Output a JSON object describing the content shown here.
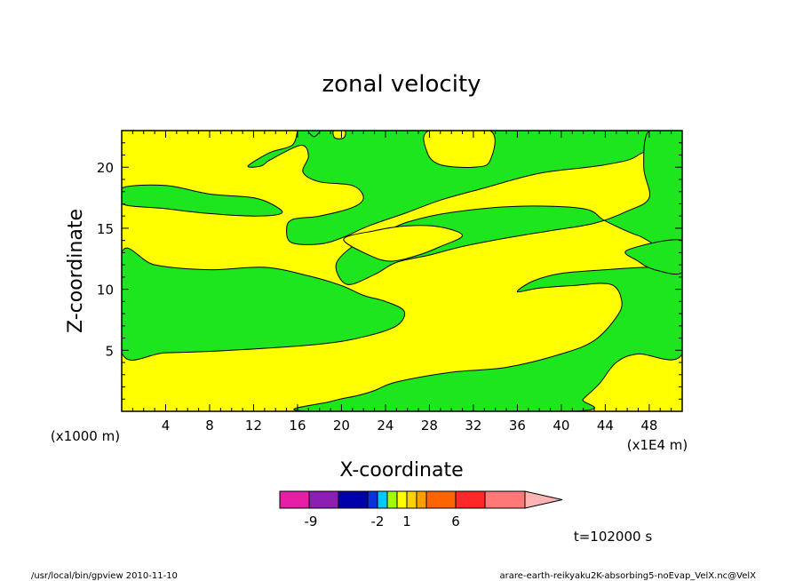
{
  "chart_data": {
    "type": "contour",
    "title": "zonal velocity",
    "xlabel": "X-coordinate",
    "ylabel": "Z-coordinate",
    "x_unit_left": "(x1000 m)",
    "x_unit_right": "(x1E4 m)",
    "xlim": [
      0,
      51
    ],
    "ylim": [
      0,
      23
    ],
    "x_ticks": [
      4,
      8,
      12,
      16,
      20,
      24,
      28,
      32,
      36,
      40,
      44,
      48
    ],
    "y_ticks": [
      5,
      10,
      15,
      20
    ],
    "time_label": "t=102000 s",
    "fill_colors": {
      "green": "#1ee61e",
      "yellow": "#ffff00"
    },
    "colorbar": {
      "colors": [
        "#e61ea5",
        "#8c1eb4",
        "#0000aa",
        "#0a32dc",
        "#00c8ff",
        "#a0ff00",
        "#ffff00",
        "#ffd200",
        "#ffa000",
        "#ff6400",
        "#ff2828",
        "#ff7878",
        "#ffb4b4"
      ],
      "tick_labels": [
        "-9",
        "-2",
        "1",
        "6"
      ]
    },
    "regions_green": [
      {
        "name": "lower-green-band",
        "points": [
          [
            0,
            13
          ],
          [
            3,
            12
          ],
          [
            8,
            11.6
          ],
          [
            13,
            11.8
          ],
          [
            17,
            11.1
          ],
          [
            20,
            10.3
          ],
          [
            22,
            9.5
          ],
          [
            24,
            9.0
          ],
          [
            25.7,
            8.2
          ],
          [
            25,
            7.0
          ],
          [
            22,
            6.1
          ],
          [
            18,
            5.5
          ],
          [
            10,
            5.0
          ],
          [
            4,
            4.8
          ],
          [
            0,
            4.8
          ]
        ]
      },
      {
        "name": "upper-left-green-band",
        "points": [
          [
            0,
            18.3
          ],
          [
            4,
            18.5
          ],
          [
            8,
            17.8
          ],
          [
            12,
            17.5
          ],
          [
            14,
            16.8
          ],
          [
            14.5,
            16.2
          ],
          [
            12,
            16.0
          ],
          [
            8,
            16.2
          ],
          [
            4,
            16.6
          ],
          [
            0,
            17.0
          ]
        ]
      },
      {
        "name": "top-green-region",
        "points": [
          [
            16,
            23
          ],
          [
            48,
            23
          ],
          [
            47,
            21
          ],
          [
            44,
            20.2
          ],
          [
            38,
            19.5
          ],
          [
            33,
            18.3
          ],
          [
            29,
            17.3
          ],
          [
            26,
            16.3
          ],
          [
            22.5,
            15.2
          ],
          [
            20,
            14.2
          ],
          [
            18,
            13.7
          ],
          [
            15.5,
            13.8
          ],
          [
            15,
            14.8
          ],
          [
            15.5,
            15.7
          ],
          [
            18,
            16.0
          ],
          [
            21,
            16.7
          ],
          [
            22,
            17.5
          ],
          [
            21,
            18.5
          ],
          [
            18,
            18.8
          ],
          [
            16.5,
            19.6
          ],
          [
            17,
            20.9
          ],
          [
            16.3,
            21.8
          ],
          [
            13.5,
            20.6
          ],
          [
            12.7,
            20.1
          ],
          [
            11.5,
            20.1
          ],
          [
            13.5,
            21.2
          ],
          [
            15.5,
            21.8
          ],
          [
            16,
            23
          ]
        ]
      },
      {
        "name": "right-green-region",
        "points": [
          [
            51,
            23
          ],
          [
            51,
            13.5
          ],
          [
            47,
            14.4
          ],
          [
            44,
            15.6
          ],
          [
            42,
            16.6
          ],
          [
            36,
            16.8
          ],
          [
            30,
            16.3
          ],
          [
            26,
            15.5
          ],
          [
            23,
            14.3
          ],
          [
            21,
            13.5
          ],
          [
            19.5,
            12.0
          ],
          [
            20.5,
            10.4
          ],
          [
            23,
            11.2
          ],
          [
            25,
            12.2
          ],
          [
            28,
            12.8
          ],
          [
            31,
            13.5
          ],
          [
            35,
            14.2
          ],
          [
            39,
            14.8
          ],
          [
            43,
            15.4
          ],
          [
            46,
            16.4
          ],
          [
            48,
            17.5
          ],
          [
            47.5,
            20.0
          ],
          [
            48,
            23
          ]
        ]
      },
      {
        "name": "mid-right-green-region",
        "points": [
          [
            51,
            11.6
          ],
          [
            51,
            4.7
          ],
          [
            47,
            4.7
          ],
          [
            45,
            4.0
          ],
          [
            43.5,
            2.3
          ],
          [
            42,
            1.0
          ],
          [
            41,
            0
          ],
          [
            17,
            0
          ],
          [
            19,
            0.8
          ],
          [
            21.5,
            1.3
          ],
          [
            23,
            1.7
          ],
          [
            25,
            2.4
          ],
          [
            30,
            3.2
          ],
          [
            35,
            3.6
          ],
          [
            40,
            4.7
          ],
          [
            43,
            5.8
          ],
          [
            45,
            7.7
          ],
          [
            45.5,
            9.0
          ],
          [
            44.5,
            10.4
          ],
          [
            41,
            10.3
          ],
          [
            38,
            10.1
          ],
          [
            36,
            9.8
          ],
          [
            37.5,
            10.7
          ],
          [
            40,
            11.3
          ],
          [
            44,
            11.6
          ],
          [
            48,
            11.8
          ]
        ]
      },
      {
        "name": "right-edge-green-strip",
        "points": [
          [
            51,
            14
          ],
          [
            51,
            11.4
          ],
          [
            48.5,
            11.6
          ],
          [
            47,
            12.3
          ],
          [
            46,
            13.2
          ]
        ]
      },
      {
        "name": "top-left-yellow-notch",
        "points": [
          [
            17,
            23
          ],
          [
            17.5,
            22.5
          ],
          [
            18,
            23
          ]
        ]
      }
    ],
    "regions_yellow_islands": [
      {
        "name": "top-yellow-pocket",
        "points": [
          [
            28,
            23
          ],
          [
            27.8,
            21.2
          ],
          [
            29,
            20.2
          ],
          [
            32,
            20.0
          ],
          [
            33.5,
            20.5
          ],
          [
            33.5,
            23
          ]
        ]
      },
      {
        "name": "small-yellow-notch",
        "points": [
          [
            19.3,
            23
          ],
          [
            19.4,
            22.4
          ],
          [
            20.2,
            22.4
          ],
          [
            20.3,
            23
          ]
        ]
      },
      {
        "name": "upper-mid-yellow-pocket",
        "points": [
          [
            20.2,
            14.1
          ],
          [
            22.5,
            12.8
          ],
          [
            24.5,
            12.3
          ],
          [
            27,
            12.8
          ],
          [
            29,
            13.5
          ],
          [
            31,
            14.4
          ],
          [
            29,
            15.1
          ],
          [
            26,
            15.2
          ],
          [
            23,
            14.8
          ]
        ]
      }
    ]
  },
  "footer": {
    "left": "/usr/local/bin/gpview   2010-11-10",
    "right": "arare-earth-reikyaku2K-absorbing5-noEvap_VelX.nc@VelX"
  }
}
